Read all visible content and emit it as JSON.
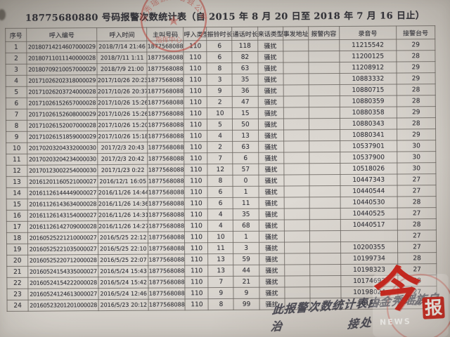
{
  "title": "18775680880 号码报警次数统计表（自 2015 年 8 月 20 日至 2018 年 7 月 16 日止）",
  "table": {
    "headers": [
      "序号",
      "呼入编号",
      "呼入时间",
      "主叫号码",
      "呼入类型",
      "振铃时长",
      "通话时长",
      "来话类型",
      "事发地址",
      "报警内容",
      "录音号",
      "接警台号"
    ],
    "rows": [
      [
        "1",
        "20180714214607000029",
        "2018/7/14 21:46",
        "18775680880",
        "110",
        "6",
        "118",
        "骚扰",
        "",
        "",
        "11215542",
        "29"
      ],
      [
        "2",
        "20180711011140000028",
        "2018/7/11 1:11",
        "18775680880",
        "110",
        "6",
        "82",
        "骚扰",
        "",
        "",
        "11200125",
        "28"
      ],
      [
        "3",
        "20180709210057000029",
        "2018/7/9 21:00",
        "18775680880",
        "110",
        "8",
        "63",
        "骚扰",
        "",
        "",
        "11208912",
        "29"
      ],
      [
        "4",
        "20171026202318000029",
        "2017/10/26 20:23",
        "18775680880",
        "110",
        "3",
        "35",
        "骚扰",
        "",
        "",
        "10883332",
        "29"
      ],
      [
        "5",
        "20171026203724000028",
        "2017/10/26 20:37",
        "18775680880",
        "110",
        "9",
        "36",
        "骚扰",
        "",
        "",
        "10880715",
        "28"
      ],
      [
        "6",
        "20171026152657000028",
        "2017/10/26 15:26",
        "18775680880",
        "110",
        "2",
        "47",
        "骚扰",
        "",
        "",
        "10880359",
        "28"
      ],
      [
        "7",
        "20171026152608000029",
        "2017/10/26 15:26",
        "18775680880",
        "110",
        "10",
        "15",
        "骚扰",
        "",
        "",
        "10880358",
        "29"
      ],
      [
        "8",
        "20171026152007000028",
        "2017/10/26 15:20",
        "18775680880",
        "110",
        "5",
        "50",
        "骚扰",
        "",
        "",
        "10880343",
        "28"
      ],
      [
        "9",
        "20171026151859000029",
        "2017/10/26 15:18",
        "18775680880",
        "110",
        "4",
        "13",
        "骚扰",
        "",
        "",
        "10880341",
        "29"
      ],
      [
        "10",
        "20170203204332000030",
        "2017/2/3 20:43",
        "18775680880",
        "110",
        "2",
        "63",
        "骚扰",
        "",
        "",
        "10537901",
        "30"
      ],
      [
        "11",
        "20170203204234000030",
        "2017/2/3 20:42",
        "18775680880",
        "110",
        "7",
        "6",
        "骚扰",
        "",
        "",
        "10537900",
        "30"
      ],
      [
        "12",
        "20170123002254000030",
        "2017/1/23 0:22",
        "18775680880",
        "110",
        "12",
        "57",
        "骚扰",
        "",
        "",
        "10518026",
        "30"
      ],
      [
        "13",
        "20161201160521000027",
        "2016/12/1 16:05",
        "18775680880",
        "110",
        "8",
        "0",
        "骚扰",
        "",
        "",
        "10447343",
        "27"
      ],
      [
        "14",
        "20161126144449000027",
        "2016/11/26 14:44",
        "18775680880",
        "110",
        "6",
        "1",
        "骚扰",
        "",
        "",
        "10440544",
        "27"
      ],
      [
        "15",
        "20161126143634000028",
        "2016/11/26 14:36",
        "18775680880",
        "110",
        "6",
        "11",
        "骚扰",
        "",
        "",
        "10440530",
        "28"
      ],
      [
        "16",
        "20161126143154000027",
        "2016/11/26 14:31",
        "18775680880",
        "110",
        "4",
        "35",
        "骚扰",
        "",
        "",
        "10440525",
        "27"
      ],
      [
        "17",
        "20161126142709000028",
        "2016/11/26 14:27",
        "18775680880",
        "110",
        "4",
        "68",
        "骚扰",
        "",
        "",
        "10440517",
        "28"
      ],
      [
        "18",
        "20160525221210000027",
        "2016/5/25 22:12",
        "18775680880",
        "110",
        "10",
        "1",
        "骚扰",
        "",
        "",
        "",
        "27"
      ],
      [
        "19",
        "20160525221035000027",
        "2016/5/25 22:10",
        "18775680880",
        "110",
        "11",
        "3",
        "骚扰",
        "",
        "",
        "10200355",
        "27"
      ],
      [
        "20",
        "20160525220712000028",
        "2016/5/25 22:07",
        "18775680880",
        "110",
        "13",
        "59",
        "骚扰",
        "",
        "",
        "10199734",
        "28"
      ],
      [
        "21",
        "20160524154335000027",
        "2016/5/24 15:43",
        "18775680880",
        "110",
        "13",
        "44",
        "骚扰",
        "",
        "",
        "10198323",
        "27"
      ],
      [
        "22",
        "20160524154222000028",
        "2016/5/24 15:42",
        "18775680880",
        "110",
        "7",
        "21",
        "骚扰",
        "",
        "",
        "10174693",
        "28"
      ],
      [
        "23",
        "20160524124613000027",
        "2016/5/24 12:46",
        "18775680880",
        "110",
        "9",
        "9",
        "骚扰",
        "",
        "",
        "10198024",
        "27"
      ],
      [
        "24",
        "20160523201201000028",
        "2016/5/23 20:12",
        "18775680880",
        "110",
        "8",
        "99",
        "骚扰",
        "",
        "",
        "101746",
        "28"
      ]
    ]
  },
  "seal": {
    "arc_text": "金秀瑶族自治县公安局",
    "center_text": "指挥中心"
  },
  "handwriting": {
    "line1": "此报警次数统计表由金秀瑶族自治",
    "line2": "接处"
  },
  "watermark": {
    "char1": "今",
    "char2": "报",
    "sub_text": "NEWS"
  },
  "colors": {
    "paper": "#d8d4ce",
    "ink": "#34343b",
    "seal_red": "#bd4038",
    "logo_red": "#c6231a"
  }
}
